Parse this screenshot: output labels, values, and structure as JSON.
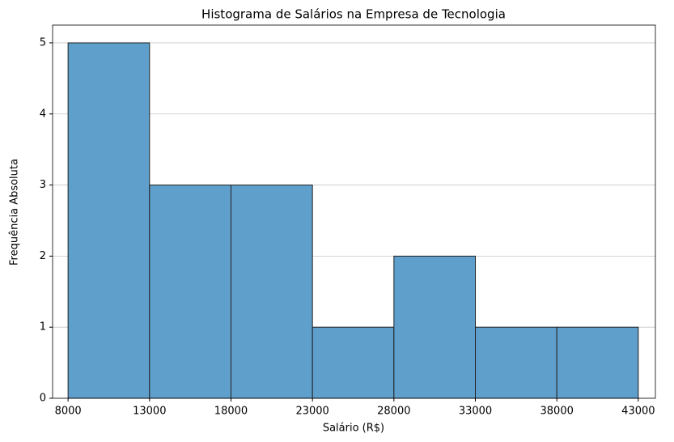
{
  "chart_data": {
    "type": "histogram",
    "title": "Histograma de Salários na Empresa de Tecnologia",
    "x_label": "Salário (R$)",
    "y_label": "Frequência Absoluta",
    "bins": [
      8000,
      13000,
      18000,
      23000,
      28000,
      33000,
      38000,
      43000
    ],
    "values": [
      5,
      3,
      3,
      1,
      2,
      1,
      1
    ],
    "color": "#5f9fcc",
    "edgecolor": "#222222",
    "xlim": [
      7050,
      44050
    ],
    "xticks": [
      8000,
      13000,
      18000,
      23000,
      28000,
      33000,
      38000,
      43000
    ],
    "ylim": [
      0,
      5.25
    ],
    "yticks": [
      0,
      1,
      2,
      3,
      4,
      5
    ],
    "grid": "y"
  }
}
